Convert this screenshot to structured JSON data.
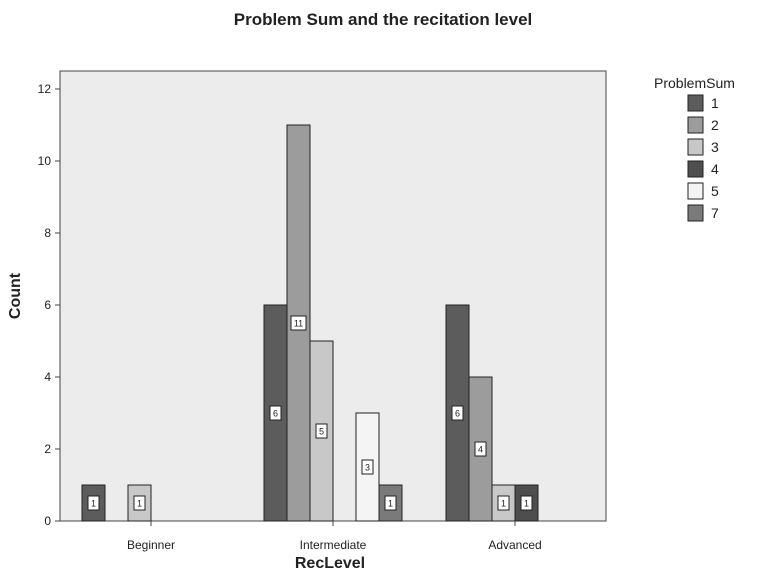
{
  "chart_data": {
    "type": "bar",
    "title": "Problem Sum and the recitation level",
    "xlabel": "RecLevel",
    "ylabel": "Count",
    "categories": [
      "Beginner",
      "Intermediate",
      "Advanced"
    ],
    "ylim": [
      0,
      12.5
    ],
    "yticks": [
      0,
      2,
      4,
      6,
      8,
      10,
      12
    ],
    "grid": false,
    "legend_title": "ProblemSum",
    "legend_position": "right",
    "series": [
      {
        "name": "1",
        "color": "#5c5c5c",
        "values": [
          1,
          6,
          6
        ]
      },
      {
        "name": "2",
        "color": "#9c9c9c",
        "values": [
          0,
          11,
          4
        ]
      },
      {
        "name": "3",
        "color": "#c8c8c8",
        "values": [
          1,
          5,
          1
        ]
      },
      {
        "name": "4",
        "color": "#4e4e4e",
        "values": [
          0,
          0,
          1
        ]
      },
      {
        "name": "5",
        "color": "#f4f4f4",
        "values": [
          0,
          3,
          0
        ]
      },
      {
        "name": "7",
        "color": "#7a7a7a",
        "values": [
          0,
          1,
          0
        ]
      }
    ]
  }
}
